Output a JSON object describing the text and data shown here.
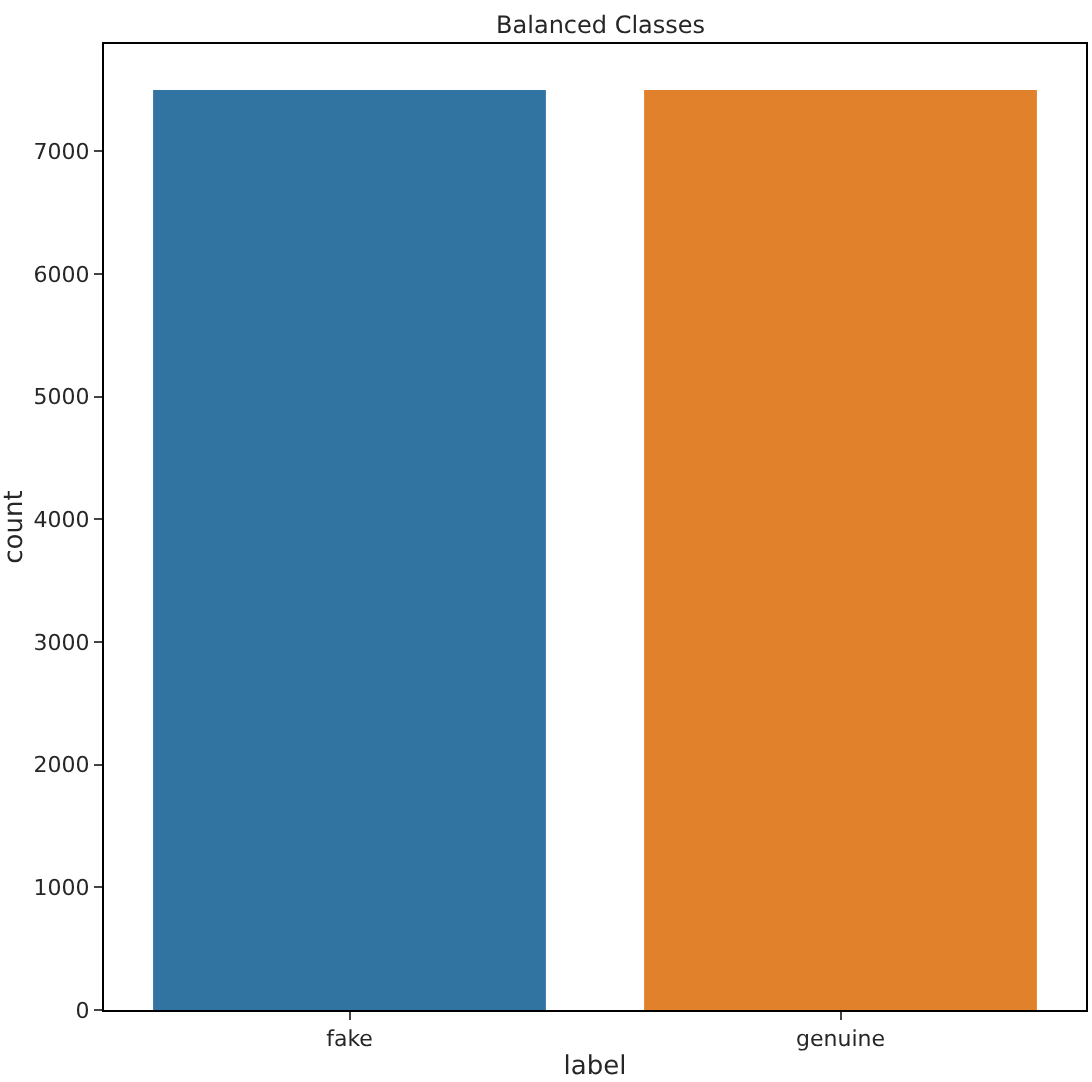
{
  "chart_data": {
    "type": "bar",
    "title": "Balanced Classes",
    "xlabel": "label",
    "ylabel": "count",
    "categories": [
      "fake",
      "genuine"
    ],
    "values": [
      7500,
      7500
    ],
    "colors": [
      "#3274a1",
      "#e1812c"
    ],
    "ylim": [
      0,
      7875
    ],
    "yticks": [
      0,
      1000,
      2000,
      3000,
      4000,
      5000,
      6000,
      7000
    ]
  }
}
